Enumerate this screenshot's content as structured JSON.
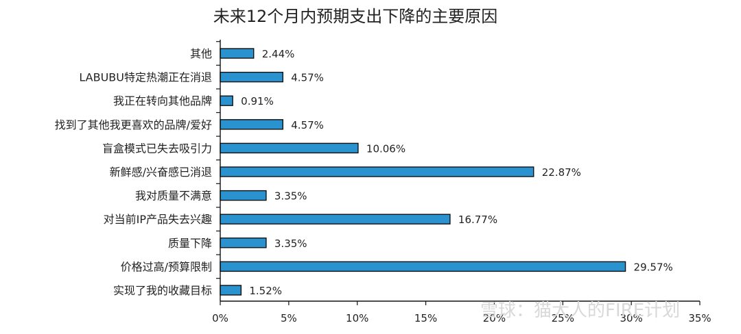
{
  "chart_data": {
    "type": "bar",
    "orientation": "horizontal",
    "title": "未来12个月内预期支出下降的主要原因",
    "xlabel": "",
    "ylabel": "",
    "categories": [
      "其他",
      "LABUBU特定热潮正在消退",
      "我正在转向其他品牌",
      "找到了其他我更喜欢的品牌/爱好",
      "盲盒模式已失去吸引力",
      "新鲜感/兴奋感已消退",
      "我对质量不满意",
      "对当前IP产品失去兴趣",
      "质量下降",
      "价格过高/预算限制",
      "实现了我的收藏目标"
    ],
    "values": [
      2.44,
      4.57,
      0.91,
      4.57,
      10.06,
      22.87,
      3.35,
      16.77,
      3.35,
      29.57,
      1.52
    ],
    "value_labels": [
      "2.44%",
      "4.57%",
      "0.91%",
      "4.57%",
      "10.06%",
      "22.87%",
      "3.35%",
      "16.77%",
      "3.35%",
      "29.57%",
      "1.52%"
    ],
    "xlim": [
      0,
      35
    ],
    "xticks": [
      0,
      5,
      10,
      15,
      20,
      25,
      30,
      35
    ],
    "xtick_labels": [
      "0%",
      "5%",
      "10%",
      "15%",
      "20%",
      "25%",
      "30%",
      "35%"
    ],
    "grid": false,
    "bar_color": "#2a93cf",
    "bar_edge_color": "#111111"
  },
  "watermark": {
    "text": "雪球：猫大人的FIRE计划"
  }
}
